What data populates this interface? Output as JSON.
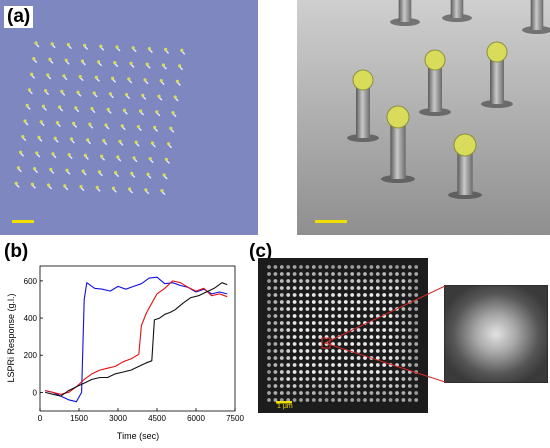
{
  "panels": {
    "a": {
      "label": "(a)"
    },
    "b": {
      "label": "(b)"
    },
    "c": {
      "label": "(c)",
      "scale_label": "1 µm"
    }
  },
  "colors": {
    "sem_left_bg": "#7e87bf",
    "sem_right_bg": "#a9a9a9",
    "gold_cap": "#d8dc5a",
    "scale_bar": "#f0e000",
    "zoom_line": "#d22a2a"
  },
  "chart_data": {
    "type": "line",
    "xlabel": "Time (sec)",
    "ylabel": "LSPRi Response (g.l.)",
    "xlim": [
      0,
      7500
    ],
    "ylim": [
      -100,
      680
    ],
    "xticks": [
      0,
      1500,
      3000,
      4500,
      6000,
      7500
    ],
    "yticks": [
      0,
      200,
      400,
      600
    ],
    "grid": false,
    "legend": "none",
    "series": [
      {
        "color": "#1010e0",
        "x": [
          200,
          500,
          800,
          1100,
          1400,
          1600,
          1700,
          1800,
          2100,
          2400,
          2700,
          3000,
          3300,
          3600,
          3900,
          4200,
          4500,
          4800,
          5100,
          5400,
          5700,
          6000,
          6300,
          6600,
          6900,
          7200
        ],
        "y": [
          10,
          0,
          -20,
          -40,
          -50,
          0,
          500,
          590,
          560,
          555,
          545,
          570,
          555,
          570,
          585,
          615,
          620,
          585,
          590,
          575,
          565,
          540,
          555,
          530,
          540,
          530
        ]
      },
      {
        "color": "#e01010",
        "x": [
          200,
          500,
          800,
          1100,
          1400,
          1700,
          2000,
          2300,
          2600,
          2900,
          3200,
          3500,
          3800,
          3900,
          4100,
          4300,
          4500,
          4800,
          5100,
          5400,
          5700,
          6000,
          6300,
          6600,
          6900,
          7200
        ],
        "y": [
          10,
          0,
          -10,
          0,
          30,
          70,
          100,
          120,
          130,
          140,
          165,
          180,
          205,
          360,
          430,
          480,
          530,
          560,
          600,
          590,
          565,
          545,
          560,
          520,
          530,
          515
        ]
      },
      {
        "color": "#111111",
        "x": [
          200,
          500,
          800,
          1100,
          1400,
          1700,
          2000,
          2300,
          2600,
          2900,
          3200,
          3500,
          3800,
          4100,
          4300,
          4400,
          4600,
          4800,
          5000,
          5200,
          5500,
          5800,
          6100,
          6400,
          6700,
          7000,
          7200
        ],
        "y": [
          0,
          -10,
          -20,
          10,
          30,
          50,
          70,
          80,
          80,
          100,
          110,
          120,
          140,
          160,
          170,
          390,
          400,
          420,
          430,
          445,
          480,
          510,
          520,
          540,
          560,
          590,
          580
        ]
      }
    ]
  }
}
